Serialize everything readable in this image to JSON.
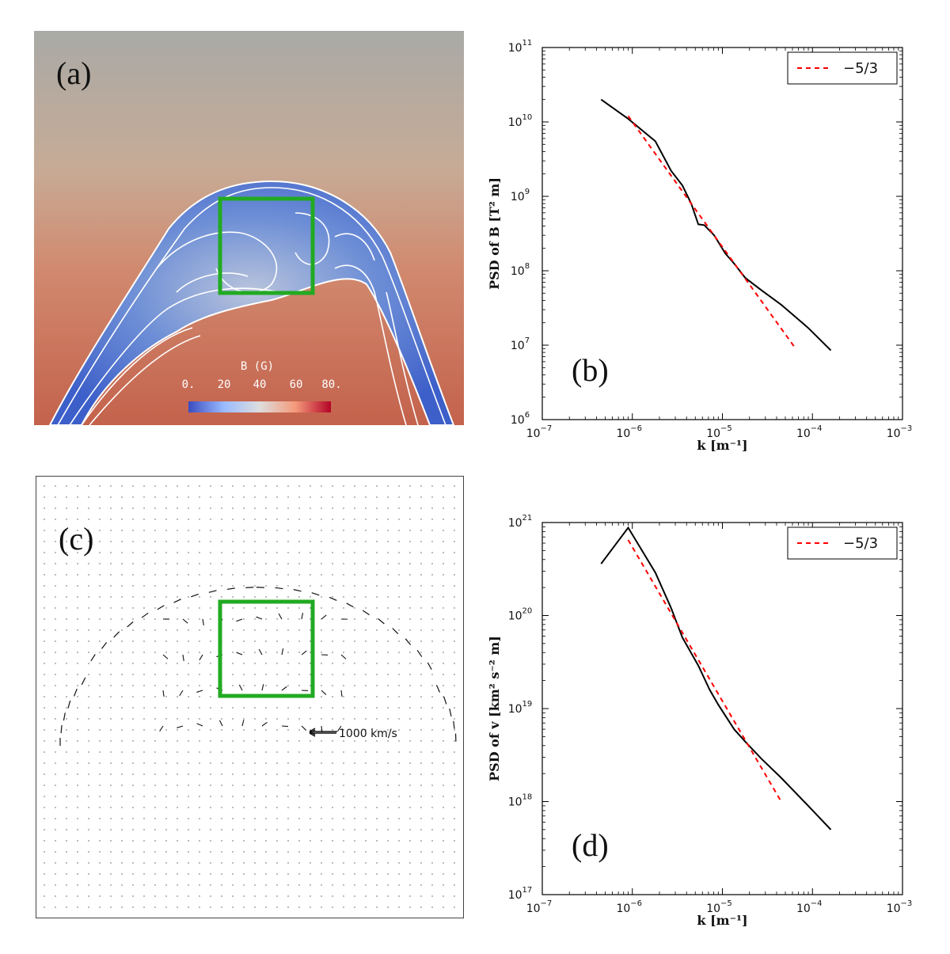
{
  "panels": {
    "a": {
      "label": "(a)"
    },
    "b": {
      "label": "(b)"
    },
    "c": {
      "label": "(c)"
    },
    "d": {
      "label": "(d)"
    }
  },
  "colorbar": {
    "title": "B (G)",
    "ticks": [
      "0.",
      "20",
      "40",
      "60",
      "80."
    ],
    "colors": [
      "#3b4cc0",
      "#9abbff",
      "#dddddd",
      "#f49a7b",
      "#b40426"
    ]
  },
  "vector_scale": {
    "label": "1000 km/s"
  },
  "colors": {
    "box": "#22aa22",
    "fit": "#ff0000",
    "psd": "#000000",
    "background_top": "#a9aaa6",
    "background_bottom": "#c76a55",
    "flux_rope": "#4a6fd0"
  },
  "chart_data": [
    {
      "type": "line",
      "id": "b",
      "xscale": "log",
      "yscale": "log",
      "xlim": [
        1e-07,
        0.001
      ],
      "ylim": [
        1000000.0,
        100000000000.0
      ],
      "xlabel": "k [m⁻¹]",
      "ylabel": "PSD of B [T² m]",
      "xticks": [
        {
          "base": "10",
          "exp": "−7"
        },
        {
          "base": "10",
          "exp": "−6"
        },
        {
          "base": "10",
          "exp": "−5"
        },
        {
          "base": "10",
          "exp": "−4"
        },
        {
          "base": "10",
          "exp": "−3"
        }
      ],
      "yticks": [
        {
          "base": "10",
          "exp": "6"
        },
        {
          "base": "10",
          "exp": "7"
        },
        {
          "base": "10",
          "exp": "8"
        },
        {
          "base": "10",
          "exp": "9"
        },
        {
          "base": "10",
          "exp": "10"
        },
        {
          "base": "10",
          "exp": "11"
        }
      ],
      "legend": {
        "entry": "−5/3",
        "position": "top-right"
      },
      "series": [
        {
          "name": "PSD",
          "style": "solid",
          "x": [
            4.5e-07,
            9e-07,
            1.8e-06,
            2.7e-06,
            3.6e-06,
            4.5e-06,
            5.4e-06,
            6.3e-06,
            8.1e-06,
            1.08e-05,
            1.35e-05,
            1.8e-05,
            2.7e-05,
            4.5e-05,
            9e-05,
            0.00016
          ],
          "y": [
            20000000000.0,
            11000000000.0,
            5500000000.0,
            2200000000.0,
            1400000000.0,
            800000000.0,
            420000000.0,
            410000000.0,
            300000000.0,
            170000000.0,
            125000000.0,
            80000000.0,
            55000000.0,
            35000000.0,
            17000000.0,
            8500000.0
          ]
        },
        {
          "name": "−5/3",
          "style": "dashed",
          "x": [
            9e-07,
            6.5e-05
          ],
          "y": [
            12000000000.0,
            9000000.0
          ]
        }
      ]
    },
    {
      "type": "line",
      "id": "d",
      "xscale": "log",
      "yscale": "log",
      "xlim": [
        1e-07,
        0.001
      ],
      "ylim": [
        1e+17,
        1e+21
      ],
      "xlabel": "k [m⁻¹]",
      "ylabel": "PSD of v [km² s⁻² m]",
      "xticks": [
        {
          "base": "10",
          "exp": "−7"
        },
        {
          "base": "10",
          "exp": "−6"
        },
        {
          "base": "10",
          "exp": "−5"
        },
        {
          "base": "10",
          "exp": "−4"
        },
        {
          "base": "10",
          "exp": "−3"
        }
      ],
      "yticks": [
        {
          "base": "10",
          "exp": "17"
        },
        {
          "base": "10",
          "exp": "18"
        },
        {
          "base": "10",
          "exp": "19"
        },
        {
          "base": "10",
          "exp": "20"
        },
        {
          "base": "10",
          "exp": "21"
        }
      ],
      "legend": {
        "entry": "−5/3",
        "position": "top-right"
      },
      "series": [
        {
          "name": "PSD",
          "style": "solid",
          "x": [
            4.5e-07,
            9e-07,
            1.8e-06,
            2.7e-06,
            3.6e-06,
            5.4e-06,
            7.2e-06,
            9e-06,
            1.35e-05,
            1.8e-05,
            2.7e-05,
            4.5e-05,
            9e-05,
            0.00016
          ],
          "y": [
            3.6e+20,
            8.8e+20,
            2.9e+20,
            1.2e+20,
            5.8e+19,
            2.9e+19,
            1.6e+19,
            1.1e+19,
            6e+18,
            4.4e+18,
            2.9e+18,
            1.8e+18,
            9e+17,
            5e+17
          ]
        },
        {
          "name": "−5/3",
          "style": "dashed",
          "x": [
            9e-07,
            4.5e-05
          ],
          "y": [
            6.5e+20,
            1e+18
          ]
        }
      ]
    }
  ]
}
